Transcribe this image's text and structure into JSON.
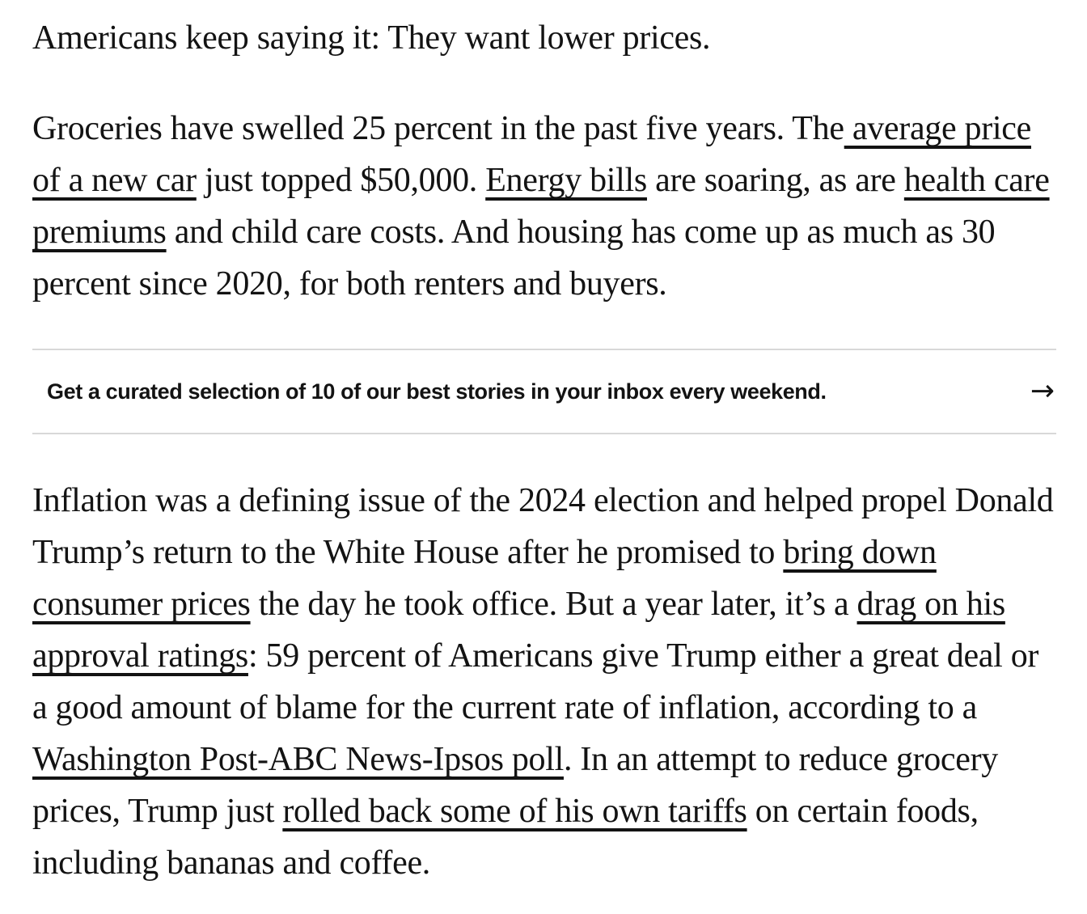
{
  "page": {
    "colors": {
      "bg": "#ffffff",
      "text": "#131313",
      "divider": "#d8d8d8"
    }
  },
  "article": {
    "paragraphs": [
      {
        "segments": [
          {
            "text": "Americans keep saying it: They want lower prices.",
            "link": false
          }
        ]
      },
      {
        "segments": [
          {
            "text": "Groceries have swelled 25 percent in the past five years. The",
            "link": false
          },
          {
            "text": " average price of a new car",
            "link": true
          },
          {
            "text": " just topped $50,000. ",
            "link": false
          },
          {
            "text": "Energy bills",
            "link": true
          },
          {
            "text": " are soaring, as are ",
            "link": false
          },
          {
            "text": "health care premiums",
            "link": true
          },
          {
            "text": " and child care costs. And housing has come up as much as 30 percent since 2020, for both renters and buyers.",
            "link": false
          }
        ]
      },
      {
        "segments": [
          {
            "text": "Inflation was a defining issue of the 2024 election and helped propel Donald Trump’s return to the White House after he promised to ",
            "link": false
          },
          {
            "text": "bring down consumer prices",
            "link": true
          },
          {
            "text": " the day he took office. But a year later, it’s a ",
            "link": false
          },
          {
            "text": "drag on his approval ratings",
            "link": true
          },
          {
            "text": ": 59 percent of Americans give Trump either a great deal or a good amount of blame for the current rate of inflation, according to a ",
            "link": false
          },
          {
            "text": "Washington Post-ABC News-Ipsos poll",
            "link": true
          },
          {
            "text": ". In an attempt to reduce grocery prices, Trump just ",
            "link": false
          },
          {
            "text": "rolled back some of his own tariffs",
            "link": true
          },
          {
            "text": " on certain foods, including bananas and coffee.",
            "link": false
          }
        ]
      }
    ]
  },
  "newsletter_promo": {
    "label": "Get a curated selection of 10 of our best stories in your inbox every weekend.",
    "arrow_icon": "→"
  }
}
